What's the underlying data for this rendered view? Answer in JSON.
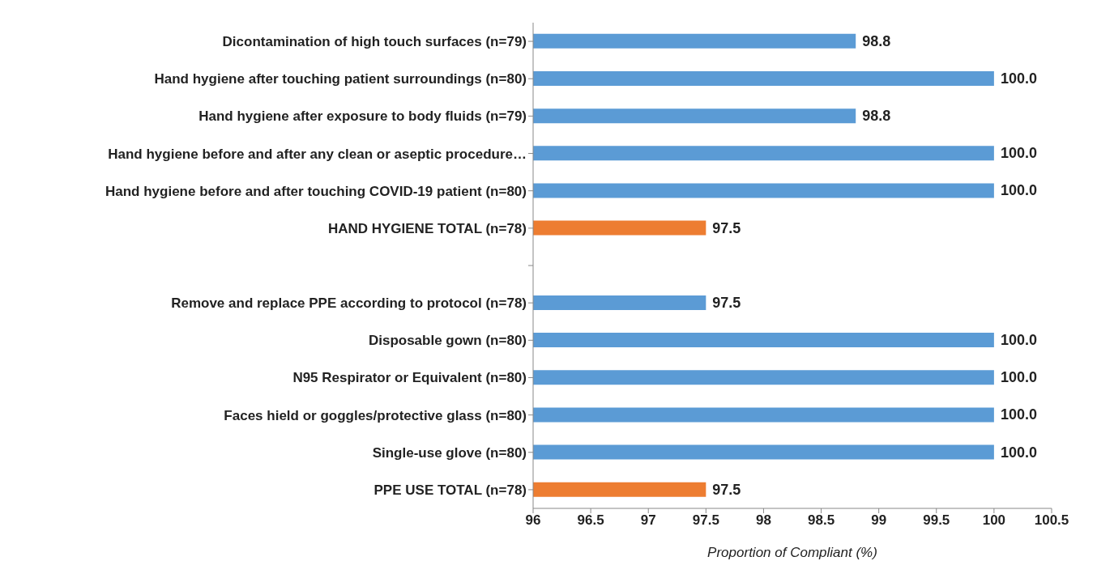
{
  "chart_data": {
    "type": "bar",
    "orientation": "horizontal",
    "categories": [
      "Dicontamination of high touch surfaces (n=79)",
      "Hand hygiene after touching patient surroundings (n=80)",
      "Hand hygiene after exposure to body fluids (n=79)",
      "Hand hygiene before and after any clean or aseptic procedure…",
      "Hand hygiene before and after touching COVID-19 patient (n=80)",
      "HAND HYGIENE TOTAL (n=78)",
      null,
      "Remove and replace PPE according to protocol (n=78)",
      "Disposable gown (n=80)",
      "N95 Respirator or Equivalent (n=80)",
      "Faces hield or goggles/protective glass (n=80)",
      "Single-use glove (n=80)",
      "PPE USE TOTAL  (n=78)"
    ],
    "values": [
      98.8,
      100,
      98.8,
      100,
      100,
      97.5,
      null,
      97.5,
      100,
      100,
      100,
      100,
      97.5
    ],
    "colors": [
      "#5b9bd5",
      "#5b9bd5",
      "#5b9bd5",
      "#5b9bd5",
      "#5b9bd5",
      "#ed7d31",
      null,
      "#5b9bd5",
      "#5b9bd5",
      "#5b9bd5",
      "#5b9bd5",
      "#5b9bd5",
      "#ed7d31"
    ],
    "value_labels": [
      "98.8",
      "100.0",
      "98.8",
      "100.0",
      "100.0",
      "97.5",
      null,
      "97.5",
      "100.0",
      "100.0",
      "100.0",
      "100.0",
      "97.5"
    ],
    "xlabel": "Proportion of Compliant (%)",
    "xlim": [
      96,
      100.5
    ],
    "xticks": [
      96,
      96.5,
      97,
      97.5,
      98,
      98.5,
      99,
      99.5,
      100,
      100.5
    ],
    "grid": false
  }
}
